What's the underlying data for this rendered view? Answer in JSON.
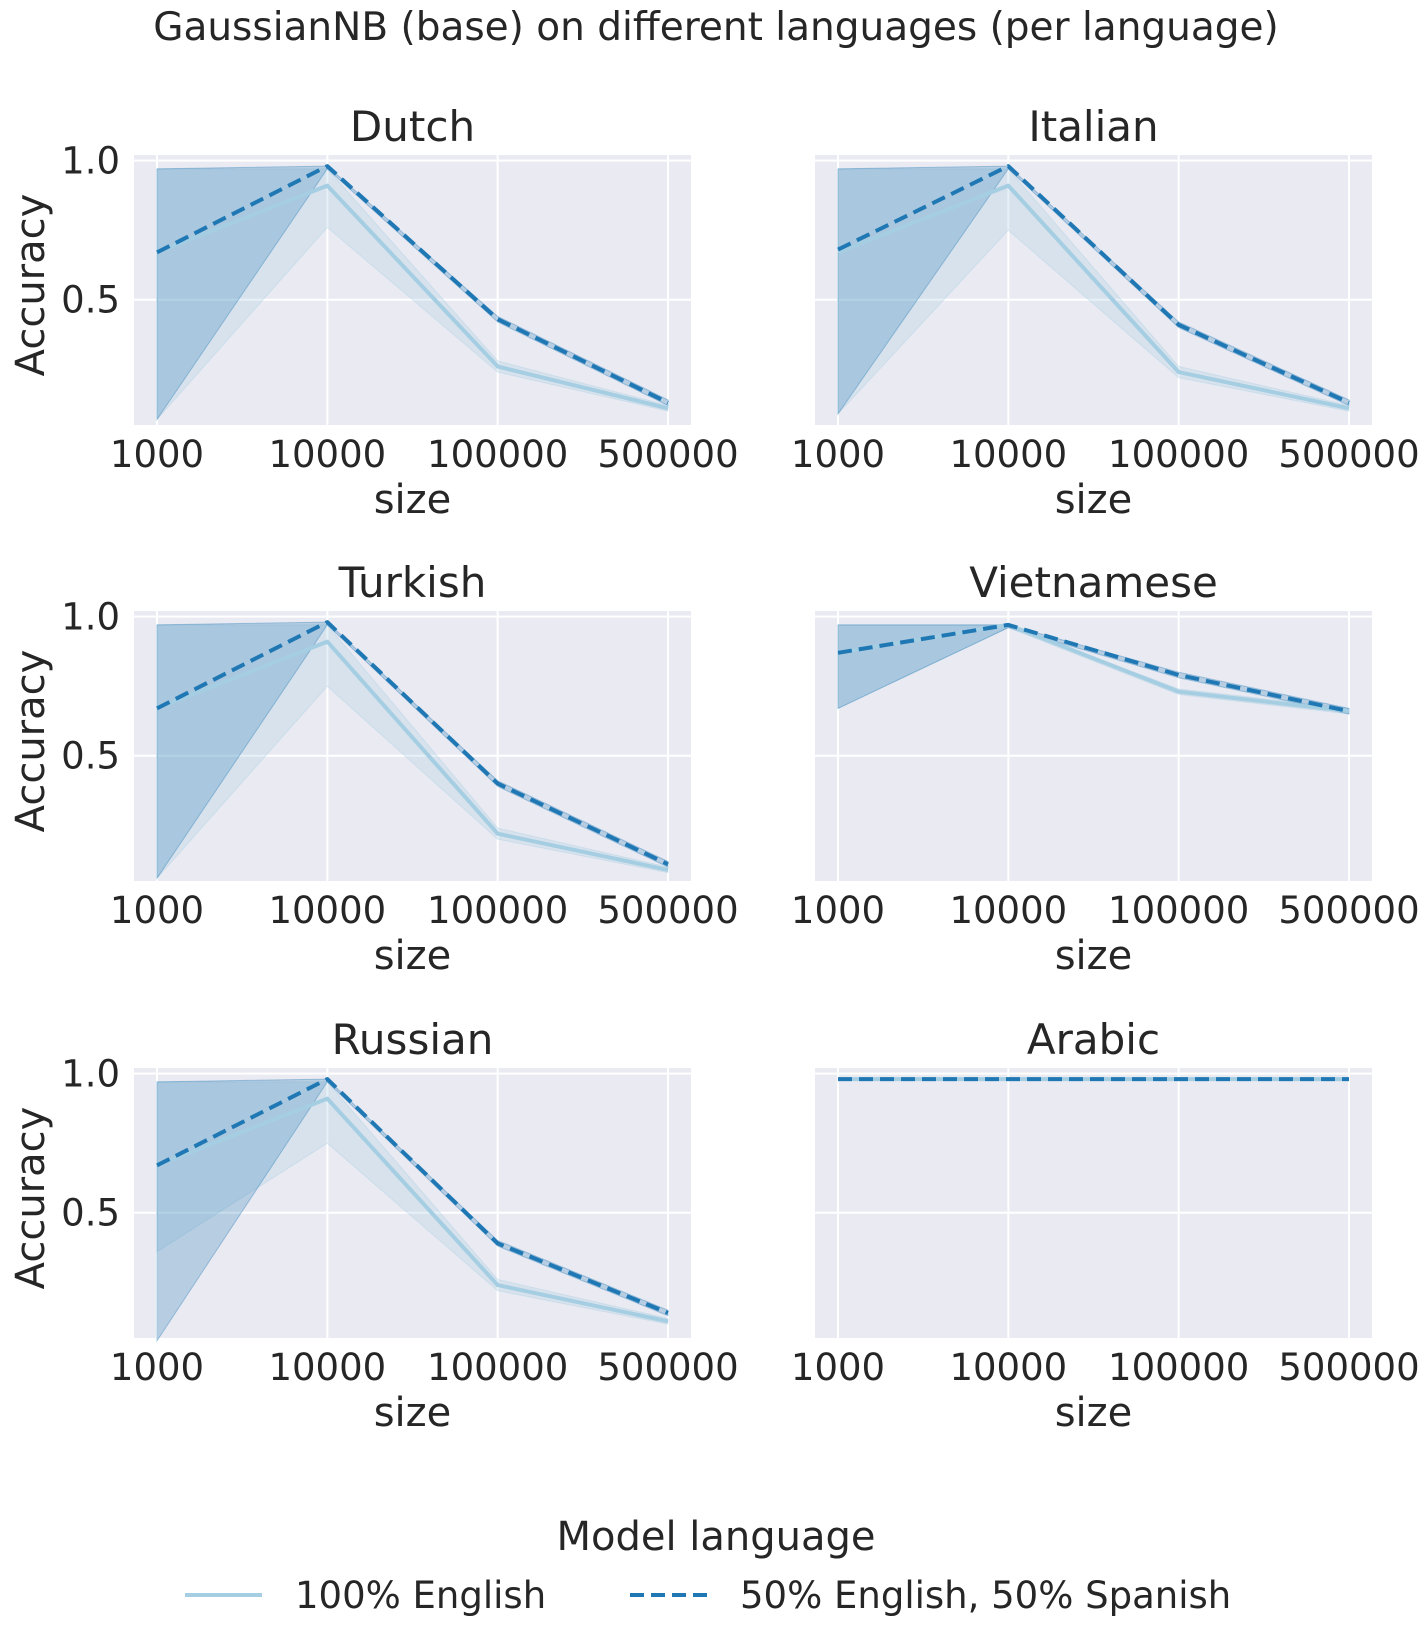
{
  "figure": {
    "suptitle": "GaussianNB (base) on different languages (per language)"
  },
  "legend": {
    "title": "Model language",
    "placement": "bottom-center",
    "entries": [
      "100% English",
      "50% English, 50% Spanish"
    ]
  },
  "colors": {
    "series_light": "#a6cee3",
    "series_dark": "#1f78b4",
    "band_light": "#a6cee3",
    "band_dark": "#1f78b4",
    "panel_bg": "#eaeaf2",
    "grid": "#ffffff"
  },
  "chart_data": [
    {
      "type": "line",
      "title": "Dutch",
      "xlabel": "size",
      "ylabel": "Accuracy",
      "categories": [
        "1000",
        "10000",
        "100000",
        "500000"
      ],
      "ylim": [
        0.0,
        1.0
      ],
      "yticks": [
        "0.5",
        "1.0"
      ],
      "grid": true,
      "series": [
        {
          "name": "100% English",
          "style": "solid",
          "values": [
            0.67,
            0.91,
            0.26,
            0.11
          ],
          "ci_low": [
            0.07,
            0.76,
            0.24,
            0.1
          ],
          "ci_high": [
            0.97,
            0.97,
            0.28,
            0.12
          ]
        },
        {
          "name": "50% English, 50% Spanish",
          "style": "dashed",
          "values": [
            0.67,
            0.98,
            0.43,
            0.13
          ],
          "ci_low": [
            0.07,
            0.97,
            0.42,
            0.12
          ],
          "ci_high": [
            0.97,
            0.98,
            0.44,
            0.14
          ]
        }
      ]
    },
    {
      "type": "line",
      "title": "Italian",
      "xlabel": "size",
      "ylabel": "Accuracy",
      "categories": [
        "1000",
        "10000",
        "100000",
        "500000"
      ],
      "ylim": [
        0.0,
        1.0
      ],
      "yticks": [
        "0.5",
        "1.0"
      ],
      "grid": true,
      "series": [
        {
          "name": "100% English",
          "style": "solid",
          "values": [
            0.67,
            0.91,
            0.24,
            0.11
          ],
          "ci_low": [
            0.09,
            0.75,
            0.22,
            0.1
          ],
          "ci_high": [
            0.97,
            0.97,
            0.26,
            0.12
          ]
        },
        {
          "name": "50% English, 50% Spanish",
          "style": "dashed",
          "values": [
            0.68,
            0.98,
            0.41,
            0.13
          ],
          "ci_low": [
            0.09,
            0.97,
            0.4,
            0.12
          ],
          "ci_high": [
            0.97,
            0.98,
            0.42,
            0.14
          ]
        }
      ]
    },
    {
      "type": "line",
      "title": "Turkish",
      "xlabel": "size",
      "ylabel": "Accuracy",
      "categories": [
        "1000",
        "10000",
        "100000",
        "500000"
      ],
      "ylim": [
        0.0,
        1.0
      ],
      "yticks": [
        "0.5",
        "1.0"
      ],
      "grid": true,
      "series": [
        {
          "name": "100% English",
          "style": "solid",
          "values": [
            0.67,
            0.91,
            0.22,
            0.09
          ],
          "ci_low": [
            0.06,
            0.75,
            0.2,
            0.08
          ],
          "ci_high": [
            0.97,
            0.97,
            0.24,
            0.1
          ]
        },
        {
          "name": "50% English, 50% Spanish",
          "style": "dashed",
          "values": [
            0.67,
            0.98,
            0.4,
            0.11
          ],
          "ci_low": [
            0.06,
            0.97,
            0.39,
            0.1
          ],
          "ci_high": [
            0.97,
            0.98,
            0.41,
            0.12
          ]
        }
      ]
    },
    {
      "type": "line",
      "title": "Vietnamese",
      "xlabel": "size",
      "ylabel": "",
      "categories": [
        "1000",
        "10000",
        "100000",
        "500000"
      ],
      "ylim": [
        0.0,
        1.0
      ],
      "yticks": [
        "0.5",
        "1.0"
      ],
      "grid": true,
      "series": [
        {
          "name": "100% English",
          "style": "solid",
          "values": [
            0.87,
            0.97,
            0.73,
            0.66
          ],
          "ci_low": [
            0.67,
            0.96,
            0.72,
            0.65
          ],
          "ci_high": [
            0.97,
            0.97,
            0.74,
            0.67
          ]
        },
        {
          "name": "50% English, 50% Spanish",
          "style": "dashed",
          "values": [
            0.87,
            0.97,
            0.79,
            0.66
          ],
          "ci_low": [
            0.67,
            0.96,
            0.78,
            0.65
          ],
          "ci_high": [
            0.97,
            0.97,
            0.8,
            0.67
          ]
        }
      ]
    },
    {
      "type": "line",
      "title": "Russian",
      "xlabel": "size",
      "ylabel": "Accuracy",
      "categories": [
        "1000",
        "10000",
        "100000",
        "500000"
      ],
      "ylim": [
        0.0,
        1.0
      ],
      "yticks": [
        "0.5",
        "1.0"
      ],
      "grid": true,
      "series": [
        {
          "name": "100% English",
          "style": "solid",
          "values": [
            0.67,
            0.91,
            0.24,
            0.11
          ],
          "ci_low": [
            0.36,
            0.75,
            0.22,
            0.1
          ],
          "ci_high": [
            0.97,
            0.97,
            0.26,
            0.12
          ]
        },
        {
          "name": "50% English, 50% Spanish",
          "style": "dashed",
          "values": [
            0.67,
            0.98,
            0.39,
            0.14
          ],
          "ci_low": [
            0.04,
            0.97,
            0.38,
            0.13
          ],
          "ci_high": [
            0.97,
            0.98,
            0.4,
            0.15
          ]
        }
      ]
    },
    {
      "type": "line",
      "title": "Arabic",
      "xlabel": "size",
      "ylabel": "",
      "categories": [
        "1000",
        "10000",
        "100000",
        "500000"
      ],
      "ylim": [
        0.0,
        1.0
      ],
      "yticks": [
        "0.5",
        "1.0"
      ],
      "grid": true,
      "series": [
        {
          "name": "100% English",
          "style": "solid",
          "values": [
            0.98,
            0.98,
            0.98,
            0.98
          ],
          "ci_low": [
            0.98,
            0.98,
            0.98,
            0.98
          ],
          "ci_high": [
            0.98,
            0.98,
            0.98,
            0.98
          ]
        },
        {
          "name": "50% English, 50% Spanish",
          "style": "dashed",
          "values": [
            0.98,
            0.98,
            0.98,
            0.98
          ],
          "ci_low": [
            0.98,
            0.98,
            0.98,
            0.98
          ],
          "ci_high": [
            0.98,
            0.98,
            0.98,
            0.98
          ]
        }
      ]
    }
  ]
}
